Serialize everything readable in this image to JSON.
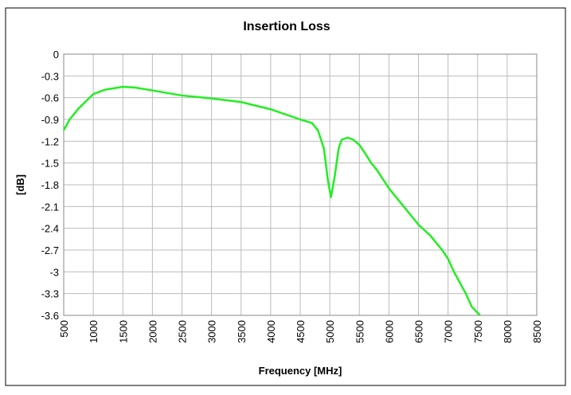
{
  "chart_data": {
    "type": "line",
    "title": "Insertion Loss",
    "xlabel": "Frequency [MHz]",
    "ylabel": "[dB]",
    "x": [
      500,
      600,
      750,
      900,
      1000,
      1200,
      1500,
      1700,
      2000,
      2500,
      3000,
      3500,
      4000,
      4500,
      4700,
      4800,
      4900,
      4970,
      5020,
      5080,
      5150,
      5200,
      5300,
      5400,
      5500,
      5600,
      5700,
      5800,
      6000,
      6200,
      6400,
      6500,
      6700,
      6900,
      7000,
      7100,
      7200,
      7300,
      7400,
      7540
    ],
    "series": [
      {
        "name": "Insertion Loss",
        "color": "#22ee22",
        "values": [
          -1.05,
          -0.9,
          -0.75,
          -0.63,
          -0.55,
          -0.49,
          -0.45,
          -0.46,
          -0.5,
          -0.57,
          -0.61,
          -0.66,
          -0.76,
          -0.9,
          -0.95,
          -1.05,
          -1.3,
          -1.75,
          -1.97,
          -1.7,
          -1.3,
          -1.18,
          -1.15,
          -1.18,
          -1.25,
          -1.37,
          -1.5,
          -1.6,
          -1.85,
          -2.05,
          -2.25,
          -2.35,
          -2.5,
          -2.7,
          -2.82,
          -3.0,
          -3.15,
          -3.3,
          -3.48,
          -3.6
        ]
      }
    ],
    "xlim": [
      500,
      8500
    ],
    "xticks": [
      500,
      1000,
      1500,
      2000,
      2500,
      3000,
      3500,
      4000,
      4500,
      5000,
      5500,
      6000,
      6500,
      7000,
      7500,
      8000,
      8500
    ],
    "ylim": [
      -3.6,
      0
    ],
    "yticks": [
      0,
      -0.3,
      -0.6,
      -0.9,
      -1.2,
      -1.5,
      -1.8,
      -2.1,
      -2.4,
      -2.7,
      -3,
      -3.3,
      -3.6
    ],
    "grid": true
  }
}
